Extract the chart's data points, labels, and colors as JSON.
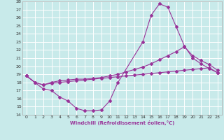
{
  "title": "",
  "xlabel": "Windchill (Refroidissement éolien,°C)",
  "bg_color": "#c8eaea",
  "grid_color": "#ffffff",
  "line_color": "#993399",
  "tick_color": "#333333",
  "xlim": [
    -0.5,
    23.5
  ],
  "ylim": [
    14,
    28
  ],
  "xticks": [
    0,
    1,
    2,
    3,
    4,
    5,
    6,
    7,
    8,
    9,
    10,
    11,
    12,
    13,
    14,
    15,
    16,
    17,
    18,
    19,
    20,
    21,
    22,
    23
  ],
  "yticks": [
    14,
    15,
    16,
    17,
    18,
    19,
    20,
    21,
    22,
    23,
    24,
    25,
    26,
    27,
    28
  ],
  "curve1_x": [
    0,
    1,
    2,
    3,
    4,
    5,
    6,
    7,
    8,
    9,
    10,
    11,
    14,
    15,
    16,
    17,
    18,
    19,
    20,
    21,
    22,
    23
  ],
  "curve1_y": [
    18.8,
    18.0,
    17.2,
    17.0,
    16.2,
    15.7,
    14.8,
    14.5,
    14.5,
    14.6,
    15.7,
    18.0,
    23.0,
    26.3,
    27.7,
    27.3,
    24.9,
    22.5,
    21.0,
    20.3,
    19.7,
    19.2
  ],
  "curve2_x": [
    0,
    1,
    2,
    3,
    4,
    5,
    6,
    7,
    8,
    9,
    10,
    11,
    12,
    13,
    14,
    15,
    16,
    17,
    18,
    19,
    20,
    21,
    22,
    23
  ],
  "curve2_y": [
    18.8,
    18.0,
    17.7,
    17.9,
    18.0,
    18.1,
    18.2,
    18.3,
    18.4,
    18.5,
    18.6,
    18.7,
    18.8,
    18.9,
    19.0,
    19.1,
    19.2,
    19.3,
    19.4,
    19.5,
    19.6,
    19.7,
    19.8,
    19.2
  ],
  "curve3_x": [
    0,
    1,
    2,
    3,
    4,
    5,
    6,
    7,
    8,
    9,
    10,
    11,
    12,
    13,
    14,
    15,
    16,
    17,
    18,
    19,
    20,
    21,
    22,
    23
  ],
  "curve3_y": [
    18.8,
    18.0,
    17.7,
    18.0,
    18.2,
    18.3,
    18.4,
    18.4,
    18.5,
    18.6,
    18.8,
    19.0,
    19.3,
    19.6,
    19.9,
    20.3,
    20.8,
    21.3,
    21.8,
    22.4,
    21.3,
    20.7,
    20.2,
    19.5
  ]
}
